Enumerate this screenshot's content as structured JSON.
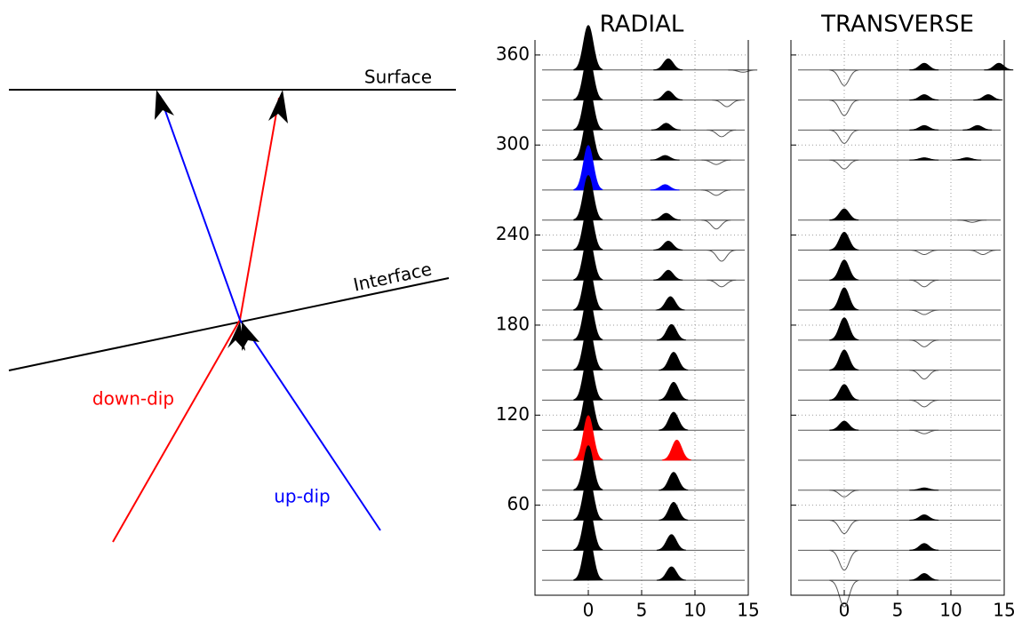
{
  "diagram": {
    "surface_label": "Surface",
    "interface_label": "Interface",
    "down_dip_label": "down-dip",
    "up_dip_label": "up-dip",
    "down_dip_color": "#ff0000",
    "up_dip_color": "#0000ff"
  },
  "chart_data": [
    {
      "type": "traces",
      "title": "RADIAL",
      "xlim": [
        -5,
        15
      ],
      "xticks": [
        0,
        5,
        10,
        15
      ],
      "ylim": [
        0,
        370
      ],
      "yticks": [
        60,
        120,
        180,
        240,
        300,
        360
      ],
      "show_ytick_labels": true,
      "grid": true,
      "color": "#000000",
      "traces": [
        {
          "y": 350,
          "pulses": [
            {
              "x": 0,
              "amp": 1
            },
            {
              "x": 7.5,
              "amp": 0.25
            },
            {
              "x": 14.5,
              "amp": -0.05
            }
          ]
        },
        {
          "y": 330,
          "pulses": [
            {
              "x": 0,
              "amp": 1
            },
            {
              "x": 7.5,
              "amp": 0.2
            },
            {
              "x": 13,
              "amp": -0.15
            }
          ]
        },
        {
          "y": 310,
          "pulses": [
            {
              "x": 0,
              "amp": 1
            },
            {
              "x": 7.3,
              "amp": 0.15
            },
            {
              "x": 12.5,
              "amp": -0.15
            }
          ]
        },
        {
          "y": 290,
          "pulses": [
            {
              "x": 0,
              "amp": 1
            },
            {
              "x": 7.2,
              "amp": 0.1
            },
            {
              "x": 12,
              "amp": -0.1
            }
          ]
        },
        {
          "y": 270,
          "color": "#0000ff",
          "pulses": [
            {
              "x": 0,
              "amp": 1
            },
            {
              "x": 7.2,
              "amp": 0.12
            },
            {
              "x": 12,
              "amp": -0.12
            }
          ]
        },
        {
          "y": 250,
          "pulses": [
            {
              "x": 0,
              "amp": 1
            },
            {
              "x": 7.3,
              "amp": 0.15
            },
            {
              "x": 12,
              "amp": -0.2
            }
          ]
        },
        {
          "y": 230,
          "pulses": [
            {
              "x": 0,
              "amp": 1
            },
            {
              "x": 7.5,
              "amp": 0.2
            },
            {
              "x": 12.5,
              "amp": -0.25
            }
          ]
        },
        {
          "y": 210,
          "pulses": [
            {
              "x": 0,
              "amp": 1
            },
            {
              "x": 7.5,
              "amp": 0.22
            },
            {
              "x": 12.5,
              "amp": -0.15
            }
          ]
        },
        {
          "y": 190,
          "pulses": [
            {
              "x": 0,
              "amp": 1
            },
            {
              "x": 7.7,
              "amp": 0.3
            }
          ]
        },
        {
          "y": 170,
          "pulses": [
            {
              "x": 0,
              "amp": 1
            },
            {
              "x": 7.8,
              "amp": 0.35
            }
          ]
        },
        {
          "y": 150,
          "pulses": [
            {
              "x": 0,
              "amp": 1
            },
            {
              "x": 8,
              "amp": 0.4
            }
          ]
        },
        {
          "y": 130,
          "pulses": [
            {
              "x": 0,
              "amp": 1
            },
            {
              "x": 8,
              "amp": 0.4
            }
          ]
        },
        {
          "y": 110,
          "pulses": [
            {
              "x": 0,
              "amp": 1
            },
            {
              "x": 8,
              "amp": 0.4
            }
          ]
        },
        {
          "y": 90,
          "color": "#ff0000",
          "pulses": [
            {
              "x": 0,
              "amp": 1
            },
            {
              "x": 8.3,
              "amp": 0.45
            }
          ]
        },
        {
          "y": 70,
          "pulses": [
            {
              "x": 0,
              "amp": 1
            },
            {
              "x": 8,
              "amp": 0.4
            }
          ]
        },
        {
          "y": 50,
          "pulses": [
            {
              "x": 0,
              "amp": 1
            },
            {
              "x": 8,
              "amp": 0.4
            }
          ]
        },
        {
          "y": 30,
          "pulses": [
            {
              "x": 0,
              "amp": 1
            },
            {
              "x": 7.8,
              "amp": 0.35
            }
          ]
        },
        {
          "y": 10,
          "pulses": [
            {
              "x": 0,
              "amp": 1
            },
            {
              "x": 7.8,
              "amp": 0.3
            }
          ]
        }
      ]
    },
    {
      "type": "traces",
      "title": "TRANSVERSE",
      "xlim": [
        -5,
        15
      ],
      "xticks": [
        0,
        5,
        10,
        15
      ],
      "ylim": [
        0,
        370
      ],
      "yticks": [
        60,
        120,
        180,
        240,
        300,
        360
      ],
      "show_ytick_labels": false,
      "grid": true,
      "color": "#000000",
      "traces": [
        {
          "y": 350,
          "pulses": [
            {
              "x": 0,
              "amp": -0.35
            },
            {
              "x": 7.5,
              "amp": 0.15
            },
            {
              "x": 14.5,
              "amp": 0.15
            }
          ]
        },
        {
          "y": 330,
          "pulses": [
            {
              "x": 0,
              "amp": -0.35
            },
            {
              "x": 7.5,
              "amp": 0.12
            },
            {
              "x": 13.5,
              "amp": 0.12
            }
          ]
        },
        {
          "y": 310,
          "pulses": [
            {
              "x": 0,
              "amp": -0.3
            },
            {
              "x": 7.5,
              "amp": 0.1
            },
            {
              "x": 12.5,
              "amp": 0.1
            }
          ]
        },
        {
          "y": 290,
          "pulses": [
            {
              "x": 0,
              "amp": -0.2
            },
            {
              "x": 7.5,
              "amp": 0.05
            },
            {
              "x": 11.5,
              "amp": 0.05
            }
          ]
        },
        {
          "y": 250,
          "pulses": [
            {
              "x": 0,
              "amp": 0.25
            },
            {
              "x": 12,
              "amp": -0.05
            }
          ]
        },
        {
          "y": 230,
          "pulses": [
            {
              "x": 0,
              "amp": 0.4
            },
            {
              "x": 7.5,
              "amp": -0.1
            },
            {
              "x": 13,
              "amp": -0.1
            }
          ]
        },
        {
          "y": 210,
          "pulses": [
            {
              "x": 0,
              "amp": 0.45
            },
            {
              "x": 7.5,
              "amp": -0.15
            }
          ]
        },
        {
          "y": 190,
          "pulses": [
            {
              "x": 0,
              "amp": 0.5
            },
            {
              "x": 7.5,
              "amp": -0.1
            }
          ]
        },
        {
          "y": 170,
          "pulses": [
            {
              "x": 0,
              "amp": 0.5
            },
            {
              "x": 7.5,
              "amp": -0.15
            }
          ]
        },
        {
          "y": 150,
          "pulses": [
            {
              "x": 0,
              "amp": 0.45
            },
            {
              "x": 7.5,
              "amp": -0.2
            }
          ]
        },
        {
          "y": 130,
          "pulses": [
            {
              "x": 0,
              "amp": 0.35
            },
            {
              "x": 7.5,
              "amp": -0.15
            }
          ]
        },
        {
          "y": 110,
          "pulses": [
            {
              "x": 0,
              "amp": 0.2
            },
            {
              "x": 7.5,
              "amp": -0.08
            }
          ]
        },
        {
          "y": 90,
          "pulses": []
        },
        {
          "y": 70,
          "pulses": [
            {
              "x": 0,
              "amp": -0.15
            },
            {
              "x": 7.5,
              "amp": 0.05
            }
          ]
        },
        {
          "y": 50,
          "pulses": [
            {
              "x": 0,
              "amp": -0.3
            },
            {
              "x": 7.5,
              "amp": 0.12
            }
          ]
        },
        {
          "y": 30,
          "pulses": [
            {
              "x": 0,
              "amp": -0.45
            },
            {
              "x": 7.5,
              "amp": 0.15
            }
          ]
        },
        {
          "y": 10,
          "pulses": [
            {
              "x": 0,
              "amp": -0.6
            },
            {
              "x": 7.5,
              "amp": 0.15
            }
          ]
        }
      ]
    }
  ]
}
